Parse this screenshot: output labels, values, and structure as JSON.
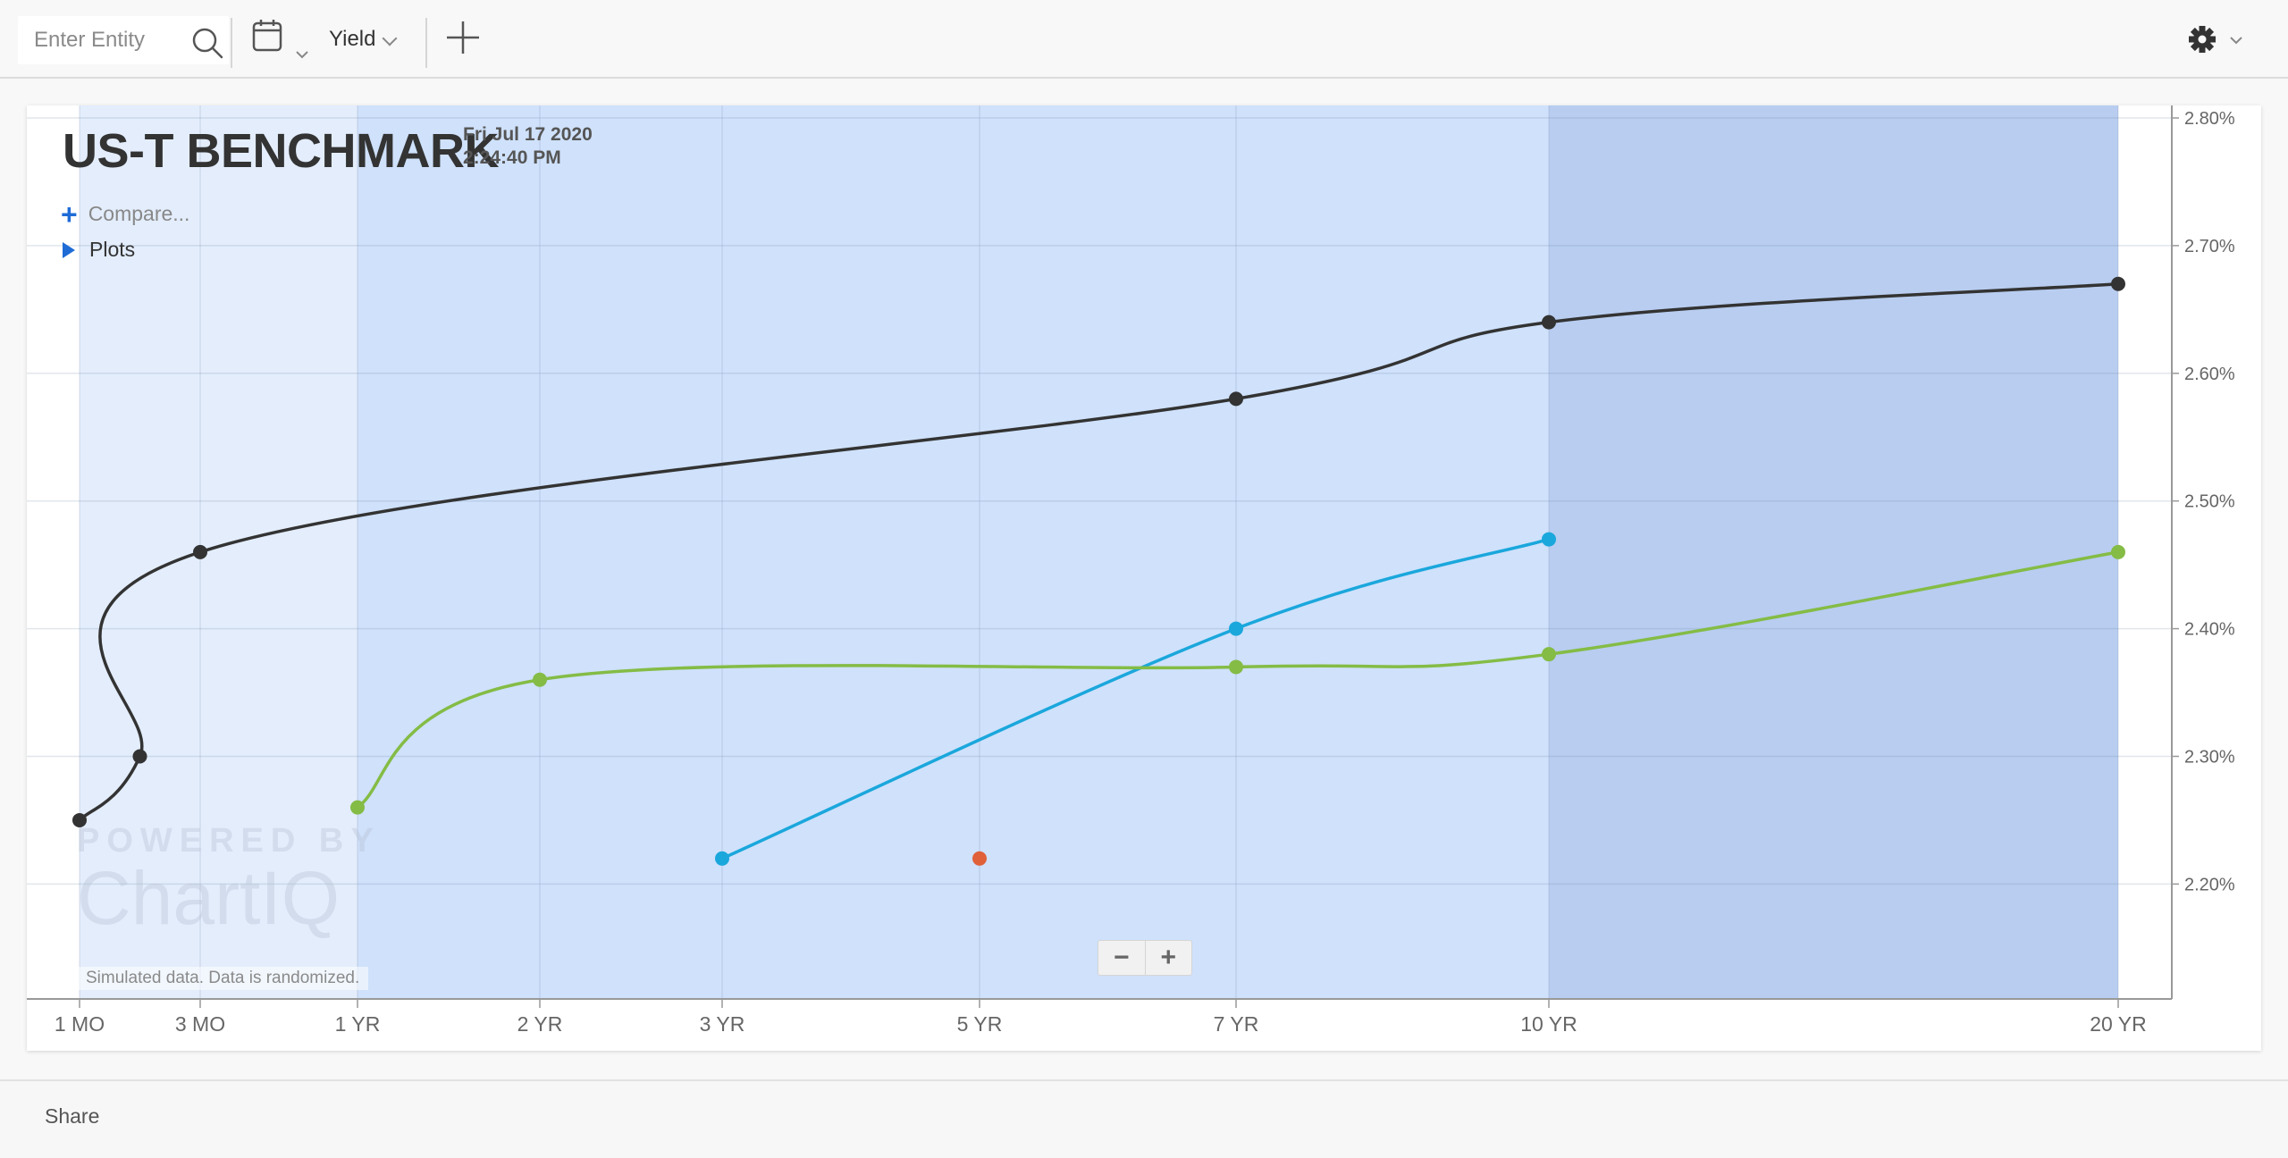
{
  "toolbar": {
    "search_placeholder": "Enter Entity",
    "yield_label": "Yield"
  },
  "chart": {
    "title": "US-T BENCHMARK",
    "date": "Fri Jul 17 2020",
    "time": "2:24:40 PM",
    "compare_label": "Compare...",
    "plots_label": "Plots",
    "watermark_top": "POWERED BY",
    "watermark_bottom": "ChartIQ",
    "note": "Simulated data.  Data is randomized."
  },
  "footer": {
    "share_label": "Share"
  },
  "chart_data": {
    "type": "line",
    "title": "US-T BENCHMARK",
    "xlabel": "",
    "ylabel": "",
    "x_ticks": [
      {
        "label": "1 MO",
        "months": 1
      },
      {
        "label": "3 MO",
        "months": 3
      },
      {
        "label": "1 YR",
        "months": 12
      },
      {
        "label": "2 YR",
        "months": 24
      },
      {
        "label": "3 YR",
        "months": 36
      },
      {
        "label": "5 YR",
        "months": 60
      },
      {
        "label": "7 YR",
        "months": 84
      },
      {
        "label": "10 YR",
        "months": 120
      },
      {
        "label": "20 YR",
        "months": 240
      }
    ],
    "y_ticks": [
      "2.20%",
      "2.30%",
      "2.40%",
      "2.50%",
      "2.60%",
      "2.70%",
      "2.80%"
    ],
    "ylim": [
      2.11,
      2.8
    ],
    "grid": true,
    "bands": [
      {
        "from_months": 1,
        "to_months": 12,
        "color": "#e3edfc"
      },
      {
        "from_months": 12,
        "to_months": 120,
        "color": "#cfe1fb"
      },
      {
        "from_months": 120,
        "to_months": 240,
        "color": "#b8cdf0"
      }
    ],
    "series": [
      {
        "color": "#333333",
        "points": [
          [
            1,
            2.25
          ],
          [
            2,
            2.3
          ],
          [
            3,
            2.46
          ],
          [
            84,
            2.58
          ],
          [
            120,
            2.64
          ],
          [
            240,
            2.67
          ]
        ]
      },
      {
        "color": "#1aa7dc",
        "points": [
          [
            36,
            2.22
          ],
          [
            84,
            2.4
          ],
          [
            120,
            2.47
          ]
        ]
      },
      {
        "color": "#84bc45",
        "points": [
          [
            12,
            2.26
          ],
          [
            24,
            2.36
          ],
          [
            84,
            2.37
          ],
          [
            120,
            2.38
          ],
          [
            240,
            2.46
          ]
        ]
      },
      {
        "color": "#e0603a",
        "points": [
          [
            60,
            2.22
          ]
        ]
      }
    ]
  }
}
